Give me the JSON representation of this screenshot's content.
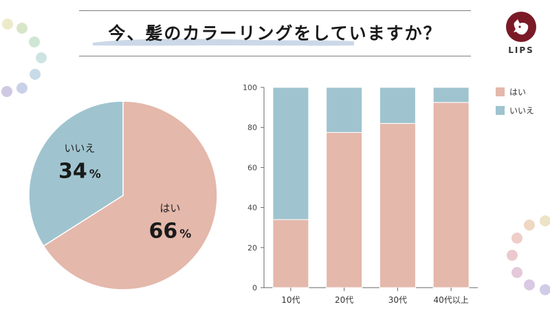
{
  "title": "今、髪のカラーリングをしていますか？",
  "logo": {
    "text": "LIPS"
  },
  "colors": {
    "yes": "#e4b8ab",
    "no": "#9fc4cf",
    "axis": "#666666"
  },
  "chart_data": [
    {
      "type": "pie",
      "slices": [
        {
          "label": "はい",
          "value": 66,
          "display": "66",
          "unit": "%"
        },
        {
          "label": "いいえ",
          "value": 34,
          "display": "34",
          "unit": "%"
        }
      ]
    },
    {
      "type": "bar",
      "stacked": true,
      "categories": [
        "10代",
        "20代",
        "30代",
        "40代以上"
      ],
      "series": [
        {
          "name": "はい",
          "values": [
            34,
            77.5,
            82,
            92.5
          ]
        },
        {
          "name": "いいえ",
          "values": [
            66,
            22.5,
            18,
            7.5
          ]
        }
      ],
      "ylim": [
        0,
        100
      ],
      "yticks": [
        0,
        20,
        40,
        60,
        80,
        100
      ],
      "legend": "right"
    }
  ]
}
